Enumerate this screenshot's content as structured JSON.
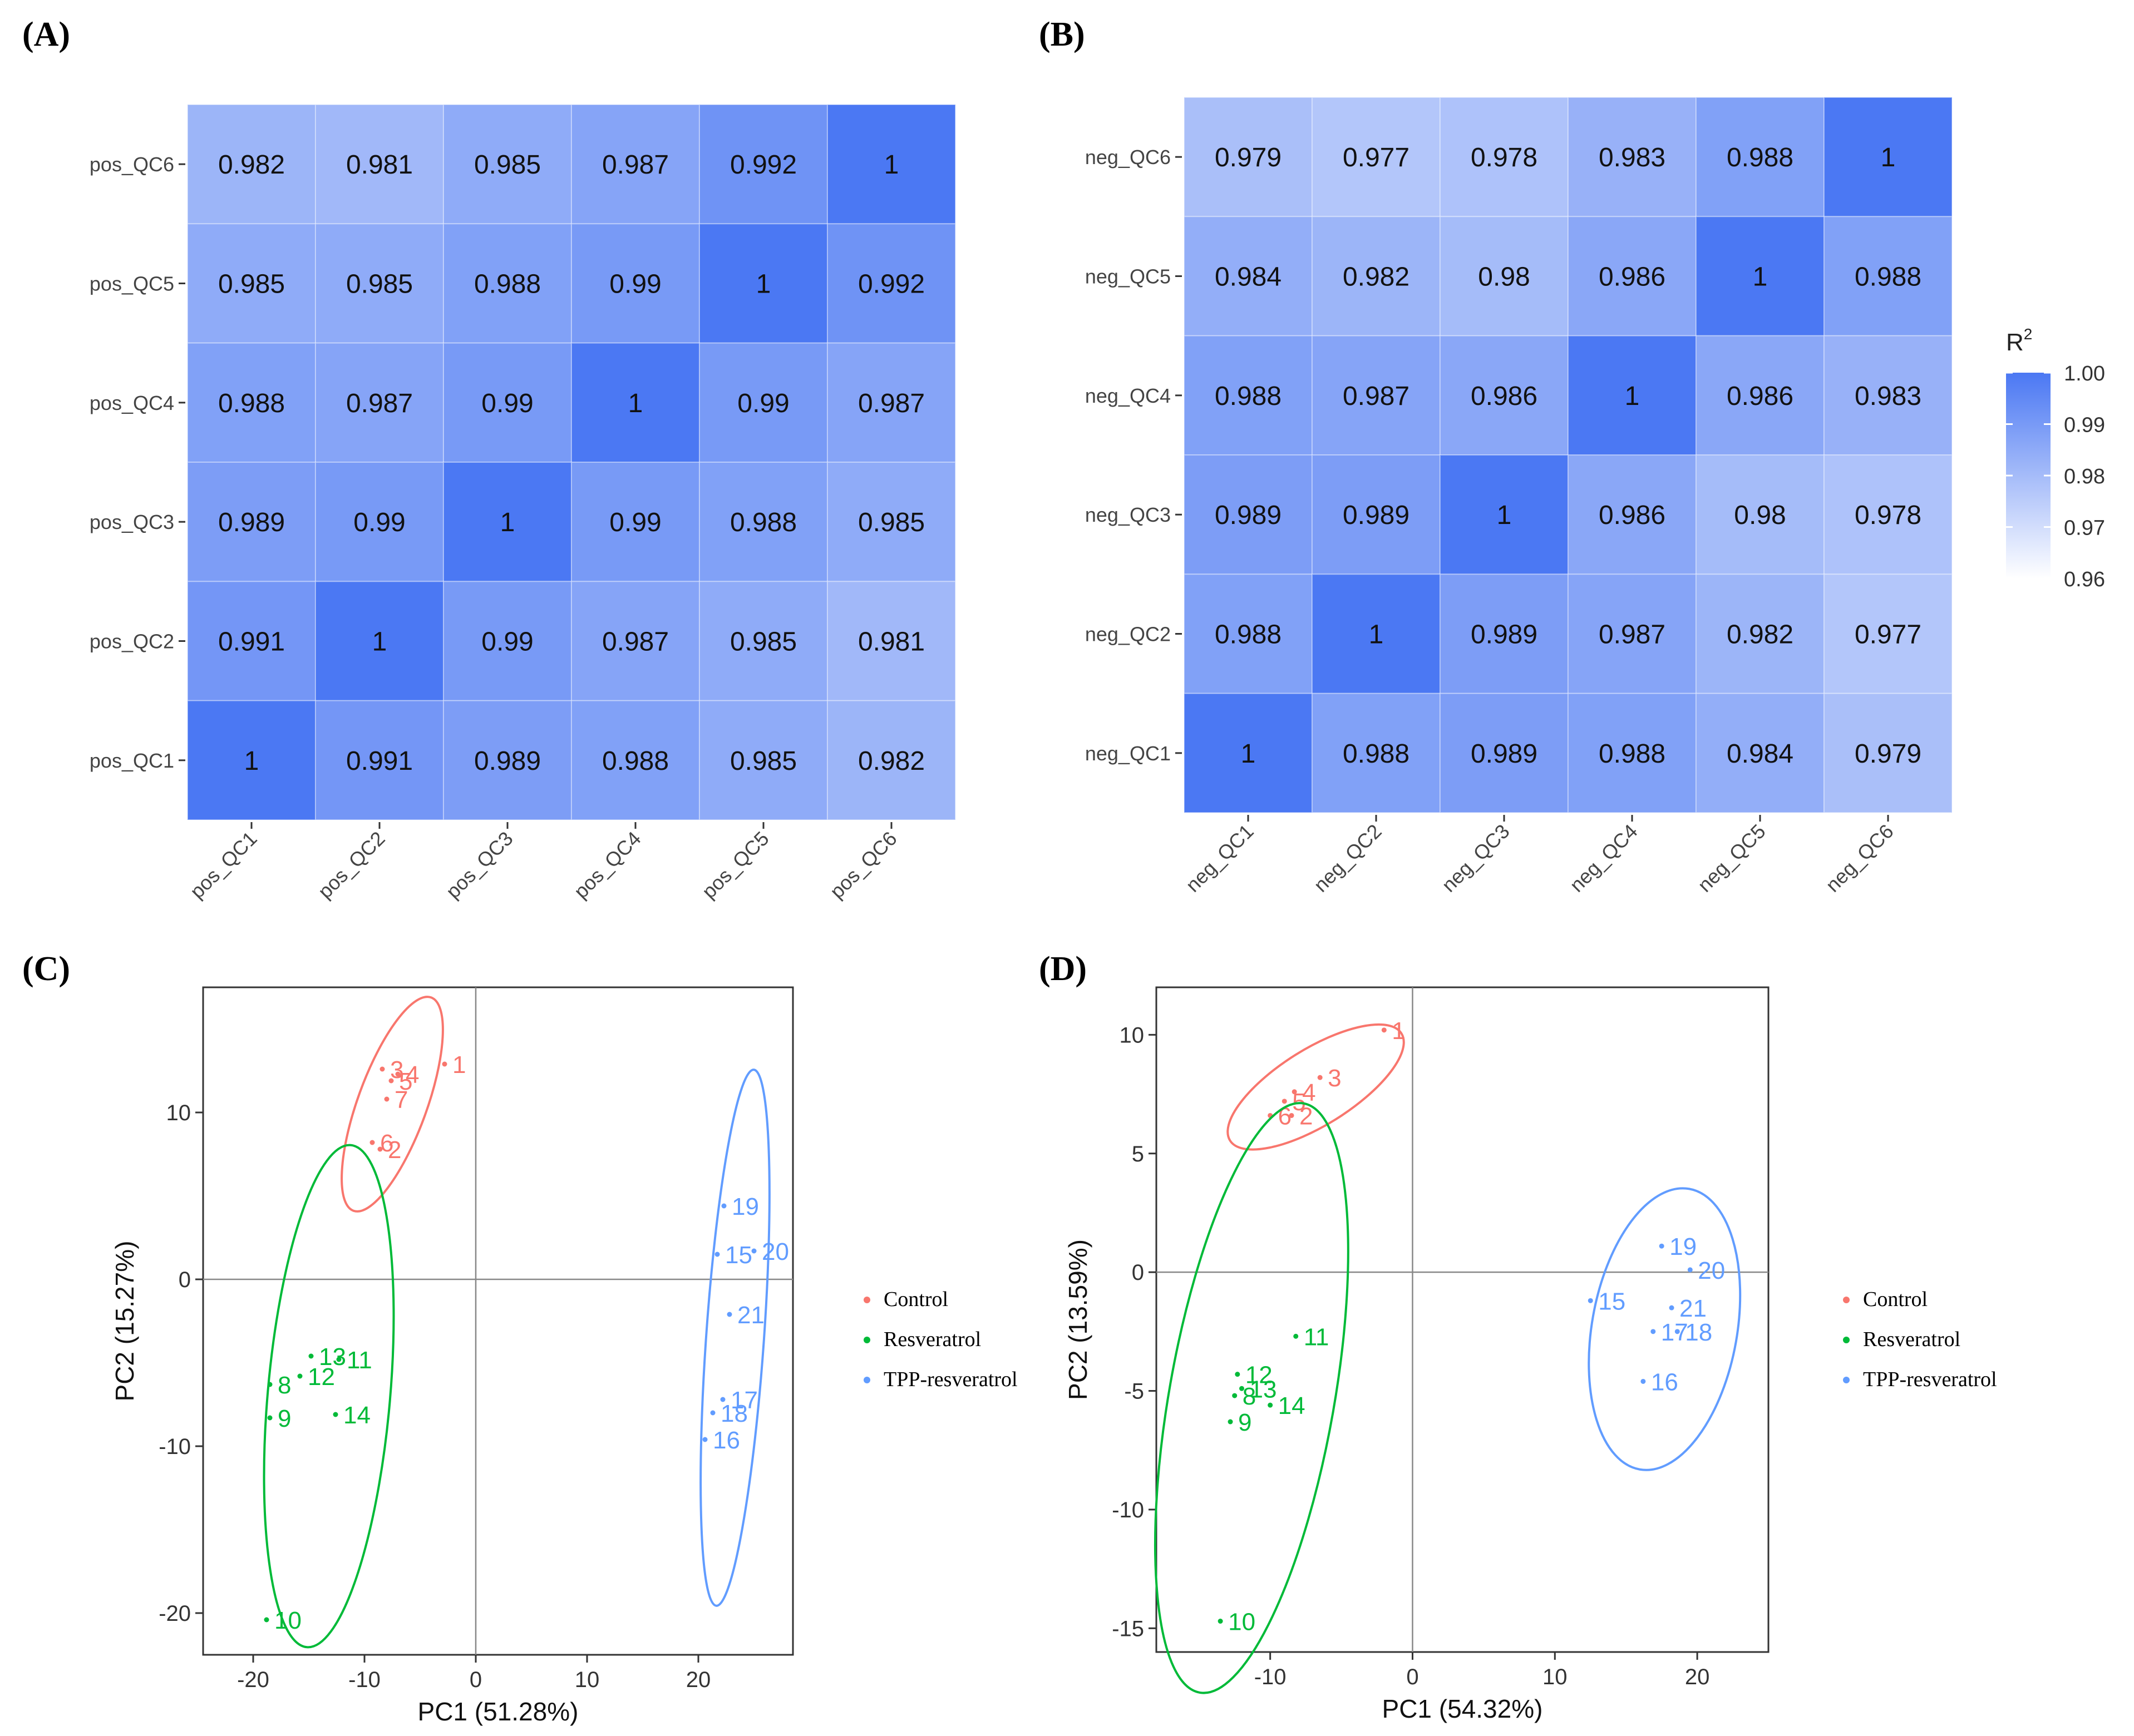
{
  "figure": {
    "labels": {
      "A": "(A)",
      "B": "(B)",
      "C": "(C)",
      "D": "(D)"
    }
  },
  "chart_data": [
    {
      "id": "A",
      "type": "heatmap",
      "title": "",
      "rows": [
        "pos_QC6",
        "pos_QC5",
        "pos_QC4",
        "pos_QC3",
        "pos_QC2",
        "pos_QC1"
      ],
      "cols": [
        "pos_QC1",
        "pos_QC2",
        "pos_QC3",
        "pos_QC4",
        "pos_QC5",
        "pos_QC6"
      ],
      "values": [
        [
          "0.982",
          "0.981",
          "0.985",
          "0.987",
          "0.992",
          "1"
        ],
        [
          "0.985",
          "0.985",
          "0.988",
          "0.99",
          "1",
          "0.992"
        ],
        [
          "0.988",
          "0.987",
          "0.99",
          "1",
          "0.99",
          "0.987"
        ],
        [
          "0.989",
          "0.99",
          "1",
          "0.99",
          "0.988",
          "0.985"
        ],
        [
          "0.991",
          "1",
          "0.99",
          "0.987",
          "0.985",
          "0.981"
        ],
        [
          "1",
          "0.991",
          "0.989",
          "0.988",
          "0.985",
          "0.982"
        ]
      ],
      "color_range": [
        0.96,
        1.0
      ]
    },
    {
      "id": "B",
      "type": "heatmap",
      "title": "",
      "rows": [
        "neg_QC6",
        "neg_QC5",
        "neg_QC4",
        "neg_QC3",
        "neg_QC2",
        "neg_QC1"
      ],
      "cols": [
        "neg_QC1",
        "neg_QC2",
        "neg_QC3",
        "neg_QC4",
        "neg_QC5",
        "neg_QC6"
      ],
      "values": [
        [
          "0.979",
          "0.977",
          "0.978",
          "0.983",
          "0.988",
          "1"
        ],
        [
          "0.984",
          "0.982",
          "0.98",
          "0.986",
          "1",
          "0.988"
        ],
        [
          "0.988",
          "0.987",
          "0.986",
          "1",
          "0.986",
          "0.983"
        ],
        [
          "0.989",
          "0.989",
          "1",
          "0.986",
          "0.98",
          "0.978"
        ],
        [
          "0.988",
          "1",
          "0.989",
          "0.987",
          "0.982",
          "0.977"
        ],
        [
          "1",
          "0.988",
          "0.989",
          "0.988",
          "0.984",
          "0.979"
        ]
      ],
      "color_range": [
        0.96,
        1.0
      ],
      "legend": {
        "title": "R",
        "title_sup": "2",
        "ticks": [
          "1.00",
          "0.99",
          "0.98",
          "0.97",
          "0.96"
        ],
        "tick_values": [
          1.0,
          0.99,
          0.98,
          0.97,
          0.96
        ]
      }
    },
    {
      "id": "C",
      "type": "scatter",
      "xlabel": "PC1 (51.28%)",
      "ylabel": "PC2 (15.27%)",
      "xlim": [
        -24.5,
        28.5
      ],
      "ylim": [
        -22.5,
        17.5
      ],
      "xticks": [
        -20,
        -10,
        0,
        10,
        20
      ],
      "yticks": [
        -20,
        -10,
        0,
        10
      ],
      "series": [
        {
          "name": "Control",
          "color": "#F8766D",
          "points": [
            {
              "label": "1",
              "x": -2.8,
              "y": 12.9
            },
            {
              "label": "3",
              "x": -8.4,
              "y": 12.6
            },
            {
              "label": "4",
              "x": -7.0,
              "y": 12.3
            },
            {
              "label": "5",
              "x": -7.6,
              "y": 11.9
            },
            {
              "label": "7",
              "x": -8.0,
              "y": 10.8
            },
            {
              "label": "6",
              "x": -9.3,
              "y": 8.2
            },
            {
              "label": "2",
              "x": -8.6,
              "y": 7.8
            }
          ],
          "ellipse": {
            "cx": -7.5,
            "cy": 10.5,
            "rx": 3.1,
            "ry": 6.8,
            "angle": 20
          }
        },
        {
          "name": "Resveratrol",
          "color": "#00BA38",
          "points": [
            {
              "label": "13",
              "x": -14.8,
              "y": -4.6
            },
            {
              "label": "11",
              "x": -12.3,
              "y": -4.8
            },
            {
              "label": "12",
              "x": -15.8,
              "y": -5.8
            },
            {
              "label": "8",
              "x": -18.5,
              "y": -6.3
            },
            {
              "label": "9",
              "x": -18.5,
              "y": -8.3
            },
            {
              "label": "14",
              "x": -12.6,
              "y": -8.1
            },
            {
              "label": "10",
              "x": -18.8,
              "y": -20.4
            }
          ],
          "ellipse": {
            "cx": -13.2,
            "cy": -7.0,
            "rx": 5.5,
            "ry": 15.1,
            "angle": 5
          }
        },
        {
          "name": "TPP-resveratrol",
          "color": "#619CFF",
          "points": [
            {
              "label": "19",
              "x": 22.3,
              "y": 4.4
            },
            {
              "label": "15",
              "x": 21.7,
              "y": 1.5
            },
            {
              "label": "20",
              "x": 25.0,
              "y": 1.7
            },
            {
              "label": "21",
              "x": 22.8,
              "y": -2.1
            },
            {
              "label": "17",
              "x": 22.2,
              "y": -7.2
            },
            {
              "label": "18",
              "x": 21.3,
              "y": -8.0
            },
            {
              "label": "16",
              "x": 20.6,
              "y": -9.6
            }
          ],
          "ellipse": {
            "cx": 23.3,
            "cy": -3.5,
            "rx": 2.6,
            "ry": 16.1,
            "angle": 4
          }
        }
      ],
      "legend": [
        "Control",
        "Resveratrol",
        "TPP-resveratrol"
      ]
    },
    {
      "id": "D",
      "type": "scatter",
      "xlabel": "PC1 (54.32%)",
      "ylabel": "PC2 (13.59%)",
      "xlim": [
        -18.0,
        25.0
      ],
      "ylim": [
        -16.0,
        12.0
      ],
      "xticks": [
        -10,
        0,
        10,
        20
      ],
      "yticks": [
        -15,
        -10,
        -5,
        0,
        5,
        10
      ],
      "series": [
        {
          "name": "Control",
          "color": "#F8766D",
          "points": [
            {
              "label": "1",
              "x": -2.0,
              "y": 10.2
            },
            {
              "label": "3",
              "x": -6.5,
              "y": 8.2
            },
            {
              "label": "4",
              "x": -8.3,
              "y": 7.6
            },
            {
              "label": "5",
              "x": -9.0,
              "y": 7.2
            },
            {
              "label": "6",
              "x": -10.0,
              "y": 6.6
            },
            {
              "label": "2",
              "x": -8.5,
              "y": 6.6
            }
          ],
          "ellipse": {
            "cx": -6.8,
            "cy": 7.8,
            "rx": 7.1,
            "ry": 1.6,
            "angle": -32
          }
        },
        {
          "name": "Resveratrol",
          "color": "#00BA38",
          "points": [
            {
              "label": "11",
              "x": -8.2,
              "y": -2.7
            },
            {
              "label": "12",
              "x": -12.3,
              "y": -4.3
            },
            {
              "label": "13",
              "x": -12.0,
              "y": -4.9
            },
            {
              "label": "8",
              "x": -12.5,
              "y": -5.2
            },
            {
              "label": "14",
              "x": -10.0,
              "y": -5.6
            },
            {
              "label": "9",
              "x": -12.8,
              "y": -6.3
            },
            {
              "label": "10",
              "x": -13.5,
              "y": -14.7
            }
          ],
          "ellipse": {
            "cx": -11.3,
            "cy": -5.3,
            "rx": 5.8,
            "ry": 12.6,
            "angle": 10
          }
        },
        {
          "name": "TPP-resveratrol",
          "color": "#619CFF",
          "points": [
            {
              "label": "19",
              "x": 17.5,
              "y": 1.1
            },
            {
              "label": "20",
              "x": 19.5,
              "y": 0.1
            },
            {
              "label": "15",
              "x": 12.5,
              "y": -1.2
            },
            {
              "label": "21",
              "x": 18.2,
              "y": -1.5
            },
            {
              "label": "17",
              "x": 16.9,
              "y": -2.5
            },
            {
              "label": "18",
              "x": 18.6,
              "y": -2.5
            },
            {
              "label": "16",
              "x": 16.2,
              "y": -4.6
            }
          ],
          "ellipse": {
            "cx": 17.7,
            "cy": -2.4,
            "rx": 5.1,
            "ry": 6.0,
            "angle": 10
          }
        }
      ],
      "legend": [
        "Control",
        "Resveratrol",
        "TPP-resveratrol"
      ]
    }
  ]
}
